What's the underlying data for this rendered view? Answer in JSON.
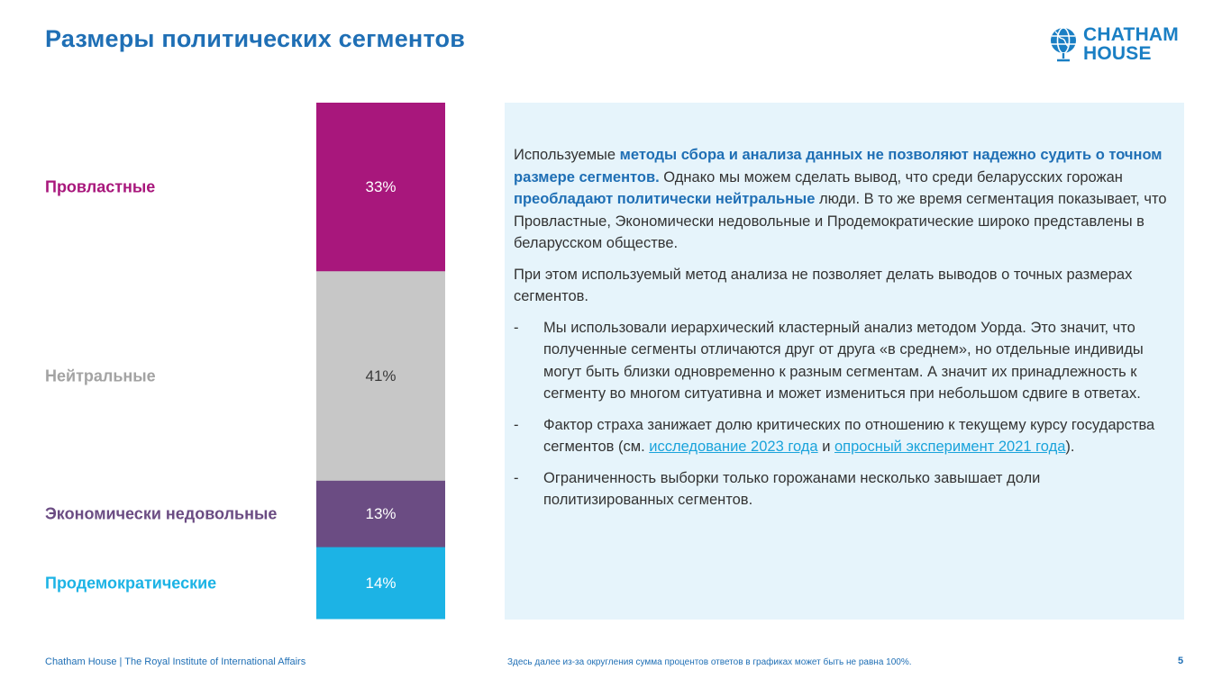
{
  "header": {
    "title": "Размеры политических сегментов",
    "logo_line1": "CHATHAM",
    "logo_line2": "HOUSE"
  },
  "chart_data": {
    "type": "bar",
    "stacked": true,
    "orientation": "vertical",
    "title": "",
    "xlabel": "",
    "ylabel": "",
    "ylim": [
      0,
      101
    ],
    "unit": "%",
    "series": [
      {
        "name": "Провластные",
        "value": 33,
        "label": "33%",
        "color": "#a8177c",
        "label_color": "#a8177c",
        "value_color": "#ffffff"
      },
      {
        "name": "Нейтральные",
        "value": 41,
        "label": "41%",
        "color": "#c7c7c7",
        "label_color": "#a3a3a3",
        "value_color": "#3a3a3a"
      },
      {
        "name": "Экономически недовольные",
        "value": 13,
        "label": "13%",
        "color": "#6b4c83",
        "label_color": "#6b4c83",
        "value_color": "#ffffff"
      },
      {
        "name": "Продемократические",
        "value": 14,
        "label": "14%",
        "color": "#1cb3e5",
        "label_color": "#1cb3e5",
        "value_color": "#ffffff"
      }
    ]
  },
  "info": {
    "p1_a": "Используемые ",
    "p1_b": "методы сбора и анализа данных не позволяют надежно судить о точном размере сегментов.",
    "p1_c": " Однако мы можем сделать вывод, что среди беларусских горожан ",
    "p1_d": "преобладают политически нейтральные",
    "p1_e": " люди. В то же время сегментация показывает, что Провластные, Экономически недовольные и Продемократические широко представлены в беларусском обществе.",
    "p2": "При этом используемый метод анализа не позволяет делать выводов о точных размерах сегментов.",
    "dash": "-",
    "b1": "Мы использовали иерархический кластерный анализ методом Уорда. Это значит, что полученные сегменты отличаются друг от друга «в среднем», но отдельные индивиды могут быть близки одновременно к разным сегментам. А значит их принадлежность к сегменту во многом ситуативна и может измениться при небольшом сдвиге в ответах.",
    "b2_a": "Фактор страха занижает долю критических по отношению к текущему курсу государства сегментов (см. ",
    "b2_link1": "исследование 2023 года",
    "b2_and": " и ",
    "b2_link2": "опросный эксперимент 2021 года",
    "b2_end": ").",
    "b3": "Ограниченность выборки только горожанами несколько завышает доли политизированных сегментов."
  },
  "footer": {
    "left": "Chatham House  |  The Royal Institute of International Affairs",
    "note": "Здесь  далее из-за округления сумма процентов ответов в графиках может быть не равна 100%.",
    "page": "5"
  },
  "colors": {
    "title": "#1f6fb5",
    "highlight": "#1f6fb5",
    "link": "#1aa3db",
    "panel": "#e6f4fb"
  }
}
